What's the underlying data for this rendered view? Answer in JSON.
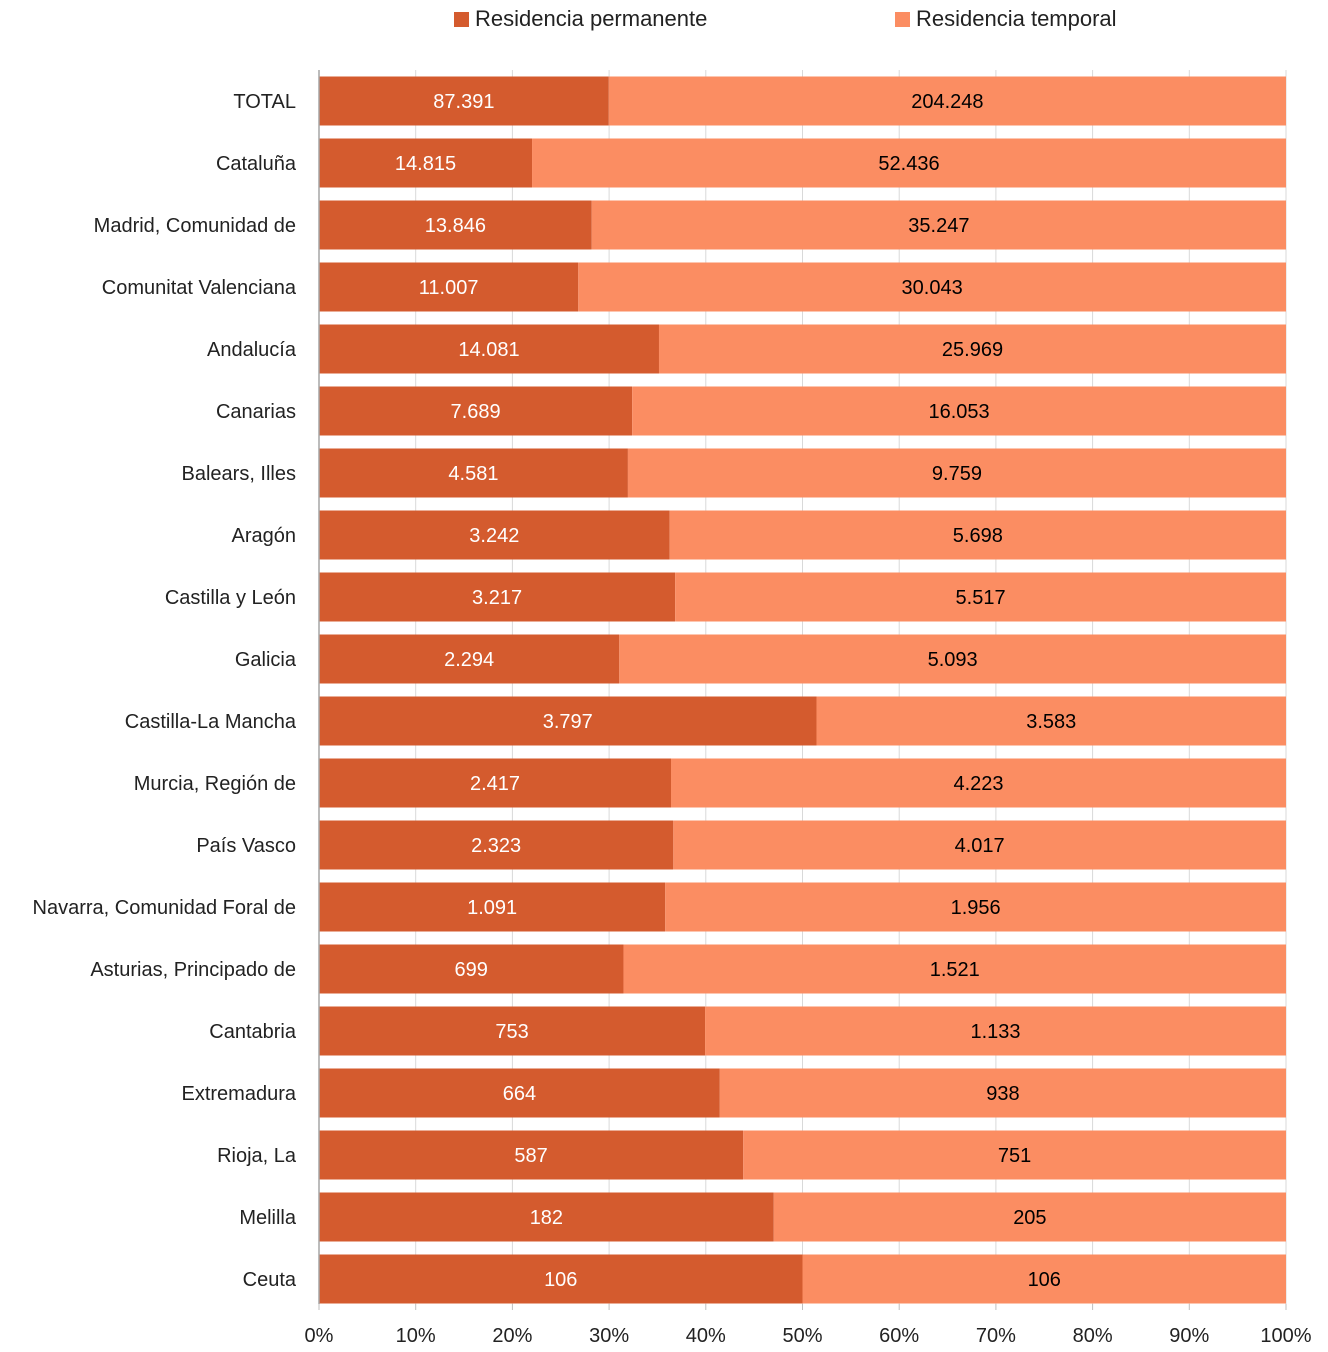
{
  "chart_data": {
    "type": "bar",
    "orientation": "horizontal",
    "stacked": "percent",
    "categories": [
      "TOTAL",
      "Cataluña",
      "Madrid, Comunidad de",
      "Comunitat Valenciana",
      "Andalucía",
      "Canarias",
      "Balears, Illes",
      "Aragón",
      "Castilla y León",
      "Galicia",
      "Castilla-La Mancha",
      "Murcia, Región de",
      "País Vasco",
      "Navarra, Comunidad Foral de",
      "Asturias, Principado de",
      "Cantabria",
      "Extremadura",
      "Rioja, La",
      "Melilla",
      "Ceuta"
    ],
    "series": [
      {
        "name": "Residencia permanente",
        "color": "#d45b2e",
        "values": [
          87391,
          14815,
          13846,
          11007,
          14081,
          7689,
          4581,
          3242,
          3217,
          2294,
          3797,
          2417,
          2323,
          1091,
          699,
          753,
          664,
          587,
          182,
          106
        ],
        "labels": [
          "87.391",
          "14.815",
          "13.846",
          "11.007",
          "14.081",
          "7.689",
          "4.581",
          "3.242",
          "3.217",
          "2.294",
          "3.797",
          "2.417",
          "2.323",
          "1.091",
          "699",
          "753",
          "664",
          "587",
          "182",
          "106"
        ],
        "label_color": "#ffffff"
      },
      {
        "name": "Residencia temporal",
        "color": "#fb8d62",
        "values": [
          204248,
          52436,
          35247,
          30043,
          25969,
          16053,
          9759,
          5698,
          5517,
          5093,
          3583,
          4223,
          4017,
          1956,
          1521,
          1133,
          938,
          751,
          205,
          106
        ],
        "labels": [
          "204.248",
          "52.436",
          "35.247",
          "30.043",
          "25.969",
          "16.053",
          "9.759",
          "5.698",
          "5.517",
          "5.093",
          "3.583",
          "4.223",
          "4.017",
          "1.956",
          "1.521",
          "1.133",
          "938",
          "751",
          "205",
          "106"
        ],
        "label_color": "#000000"
      }
    ],
    "x_ticks": [
      "0%",
      "10%",
      "20%",
      "30%",
      "40%",
      "50%",
      "60%",
      "70%",
      "80%",
      "90%",
      "100%"
    ],
    "xlim": [
      0,
      100
    ],
    "grid": true,
    "legend": "top-center"
  }
}
